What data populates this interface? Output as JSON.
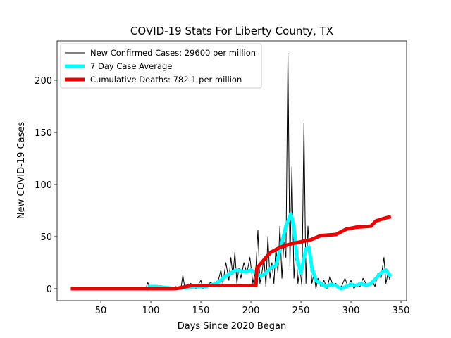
{
  "chart_data": {
    "type": "line",
    "title": "COVID-19 Stats For Liberty County, TX",
    "xlabel": "Days Since 2020 Began",
    "ylabel": "New COVID-19 Cases",
    "xlim": [
      6.3,
      355.6
    ],
    "ylim": [
      -11.5,
      237.8
    ],
    "xticks": [
      50,
      100,
      150,
      200,
      250,
      300,
      350
    ],
    "yticks": [
      0,
      50,
      100,
      150,
      200
    ],
    "legend": "upper left",
    "series": [
      {
        "name": "New Confirmed Cases: 29600 per million",
        "color": "#000000",
        "linewidth": 1,
        "x": [
          20,
          40,
          60,
          80,
          95,
          97,
          99,
          102,
          105,
          110,
          115,
          120,
          125,
          130,
          132,
          134,
          136,
          140,
          145,
          150,
          152,
          155,
          160,
          165,
          168,
          170,
          172,
          175,
          178,
          180,
          182,
          184,
          186,
          188,
          190,
          193,
          196,
          199,
          202,
          205,
          207,
          209,
          211,
          213,
          215,
          217,
          219,
          221,
          223,
          225,
          227,
          229,
          231,
          233,
          235,
          237,
          239,
          241,
          243,
          245,
          247,
          249,
          251,
          253,
          255,
          257,
          259,
          261,
          263,
          265,
          267,
          270,
          273,
          276,
          279,
          282,
          285,
          288,
          291,
          294,
          297,
          300,
          303,
          306,
          309,
          312,
          315,
          318,
          321,
          324,
          327,
          330,
          333,
          335,
          337,
          339
        ],
        "values": [
          0,
          0,
          0,
          0,
          0,
          6,
          0,
          2,
          0,
          3,
          1,
          0,
          2,
          0,
          13,
          0,
          2,
          5,
          0,
          8,
          0,
          3,
          6,
          2,
          10,
          18,
          5,
          25,
          8,
          30,
          12,
          35,
          5,
          20,
          10,
          25,
          15,
          30,
          5,
          20,
          56,
          5,
          15,
          30,
          2,
          50,
          10,
          25,
          5,
          40,
          15,
          60,
          10,
          45,
          30,
          226,
          20,
          117,
          10,
          40,
          5,
          20,
          2,
          159,
          5,
          60,
          30,
          5,
          15,
          0,
          10,
          2,
          8,
          0,
          12,
          3,
          5,
          0,
          3,
          10,
          2,
          8,
          0,
          5,
          2,
          10,
          5,
          3,
          8,
          2,
          15,
          10,
          30,
          5,
          15,
          8
        ]
      },
      {
        "name": "7 Day Case Average",
        "color": "#00ffff",
        "linewidth": 5,
        "x": [
          97,
          105,
          115,
          125,
          135,
          145,
          155,
          165,
          170,
          175,
          180,
          185,
          190,
          195,
          200,
          205,
          210,
          215,
          220,
          225,
          230,
          235,
          240,
          243,
          246,
          250,
          255,
          258,
          261,
          265,
          270,
          275,
          280,
          285,
          290,
          295,
          300,
          305,
          310,
          315,
          320,
          325,
          330,
          335,
          338,
          340
        ],
        "values": [
          2,
          2,
          1,
          0,
          1,
          2,
          2,
          5,
          8,
          12,
          15,
          18,
          17,
          16,
          18,
          15,
          12,
          15,
          20,
          22,
          40,
          60,
          72,
          60,
          30,
          15,
          38,
          40,
          20,
          8,
          5,
          2,
          4,
          3,
          0,
          2,
          4,
          3,
          5,
          3,
          5,
          10,
          15,
          18,
          14,
          12
        ]
      },
      {
        "name": "Cumulative Deaths: 782.1 per million",
        "color": "#ee0000",
        "linewidth": 5,
        "x": [
          20,
          125,
          130,
          140,
          205,
          206,
          210,
          215,
          220,
          230,
          240,
          250,
          260,
          270,
          285,
          295,
          305,
          320,
          325,
          335,
          340
        ],
        "values": [
          0,
          0,
          1,
          3,
          3,
          20,
          24,
          30,
          35,
          40,
          43,
          45,
          47,
          51,
          52,
          57,
          59,
          60,
          65,
          68,
          69
        ]
      }
    ]
  }
}
